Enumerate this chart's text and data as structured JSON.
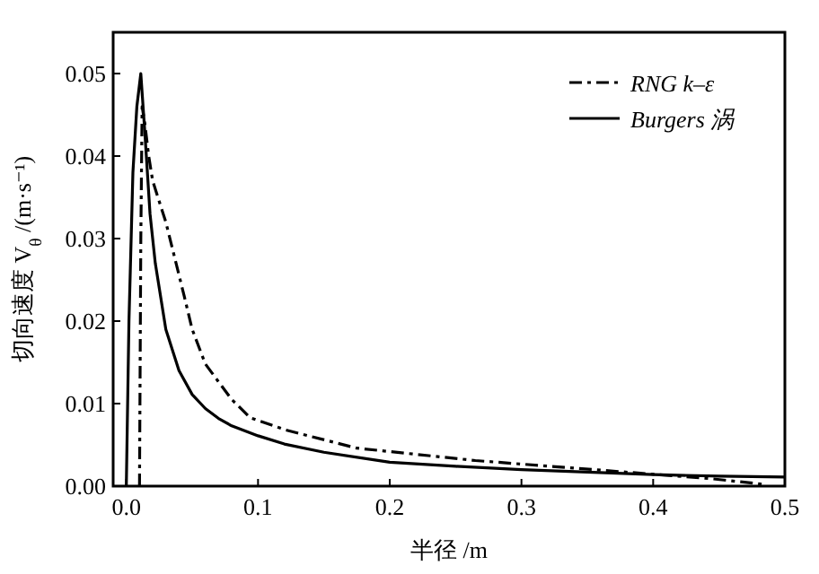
{
  "chart_data": {
    "type": "line",
    "xlabel": "半径 /m",
    "ylabel": "切向速度 V$_{θ}$ /(m·s⁻¹)",
    "xlim": [
      -0.01,
      0.5
    ],
    "ylim": [
      0,
      0.055
    ],
    "xticks": [
      {
        "value": 0,
        "label": "0.0"
      },
      0.1,
      0.2,
      0.3,
      0.4,
      0.5
    ],
    "yticks": [
      {
        "value": 0,
        "label": "0.00"
      },
      0.01,
      0.02,
      0.03,
      0.04,
      0.05
    ],
    "legend": "top right",
    "grid": false,
    "series": [
      {
        "name": "RNG k–ε",
        "color": "#000000",
        "line_style": "dashed",
        "x": [
          0.01,
          0.011,
          0.012,
          0.014,
          0.017,
          0.02,
          0.03,
          0.044,
          0.05,
          0.06,
          0.08,
          0.094,
          0.121,
          0.175,
          0.265,
          0.355,
          0.444,
          0.485
        ],
        "values": [
          0,
          0.03,
          0.046,
          0.044,
          0.04,
          0.037,
          0.032,
          0.023,
          0.019,
          0.0148,
          0.0105,
          0.0083,
          0.0068,
          0.0046,
          0.0031,
          0.002,
          0.0009,
          0.0002
        ]
      },
      {
        "name": "Burgers 涡",
        "color": "#000000",
        "line_style": "solid",
        "x": [
          0.0,
          0.002,
          0.005,
          0.008,
          0.011,
          0.014,
          0.018,
          0.022,
          0.03,
          0.04,
          0.05,
          0.06,
          0.07,
          0.08,
          0.1,
          0.12,
          0.15,
          0.2,
          0.25,
          0.3,
          0.35,
          0.4,
          0.45,
          0.5
        ],
        "values": [
          0,
          0.02,
          0.038,
          0.046,
          0.05,
          0.043,
          0.033,
          0.027,
          0.019,
          0.014,
          0.0111,
          0.0094,
          0.0082,
          0.0073,
          0.0061,
          0.0051,
          0.0041,
          0.0029,
          0.0024,
          0.002,
          0.0017,
          0.0014,
          0.0012,
          0.0011
        ]
      }
    ]
  }
}
